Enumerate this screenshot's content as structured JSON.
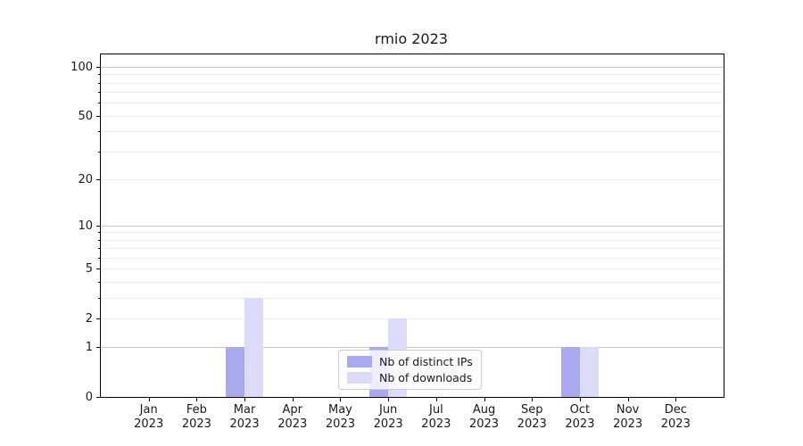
{
  "chart_data": {
    "type": "bar",
    "title": "rmio 2023",
    "categories": [
      "Jan 2023",
      "Feb 2023",
      "Mar 2023",
      "Apr 2023",
      "May 2023",
      "Jun 2023",
      "Jul 2023",
      "Aug 2023",
      "Sep 2023",
      "Oct 2023",
      "Nov 2023",
      "Dec 2023"
    ],
    "series": [
      {
        "name": "Nb of distinct IPs",
        "color": "#a9a9ef",
        "values": [
          0,
          0,
          1,
          0,
          0,
          1,
          0,
          0,
          0,
          1,
          0,
          0
        ]
      },
      {
        "name": "Nb of downloads",
        "color": "#dcdcf8",
        "values": [
          0,
          0,
          3,
          0,
          0,
          2,
          0,
          0,
          0,
          1,
          0,
          0
        ]
      }
    ],
    "xlabel": "",
    "ylabel": "",
    "yscale": "log1p",
    "ylim": [
      0,
      120
    ],
    "yticks": [
      0,
      1,
      2,
      5,
      10,
      20,
      50,
      100
    ],
    "grid": {
      "major_values": [
        1,
        10,
        100
      ],
      "minor_values": [
        2,
        3,
        4,
        5,
        6,
        7,
        8,
        9,
        20,
        30,
        40,
        50,
        60,
        70,
        80,
        90
      ],
      "major_color": "#c6c6c6",
      "minor_color": "#ededed"
    },
    "legend": {
      "position": "lower center",
      "entries": [
        "Nb of distinct IPs",
        "Nb of downloads"
      ]
    }
  }
}
